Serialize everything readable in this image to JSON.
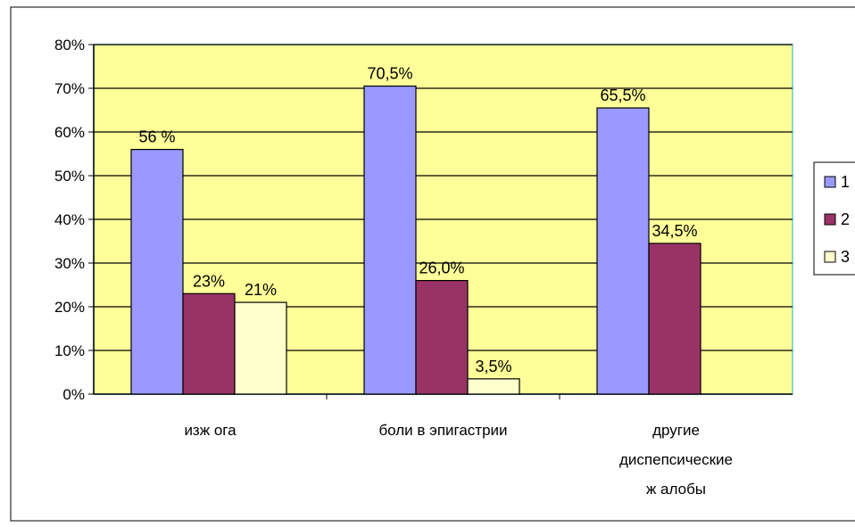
{
  "chart_data": {
    "type": "bar",
    "categories": [
      [
        "изж ога"
      ],
      [
        "боли в эпигастрии"
      ],
      [
        "другие",
        "диспепсические",
        "ж алобы"
      ]
    ],
    "series": [
      {
        "name": "1",
        "values": [
          56,
          70.5,
          65.5
        ],
        "labels": [
          "56 %",
          "70,5%",
          "65,5%"
        ],
        "color": "#9999ff"
      },
      {
        "name": "2",
        "values": [
          23,
          26.0,
          34.5
        ],
        "labels": [
          "23%",
          "26,0%",
          "34,5%"
        ],
        "color": "#993366"
      },
      {
        "name": "3",
        "values": [
          21,
          3.5,
          null
        ],
        "labels": [
          "21%",
          "3,5%",
          ""
        ],
        "color": "#ffffcc"
      }
    ],
    "y_ticks": [
      "0%",
      "10%",
      "20%",
      "30%",
      "40%",
      "50%",
      "60%",
      "70%",
      "80%"
    ],
    "ylim": [
      0,
      80
    ],
    "grid": true,
    "legend_position": "right",
    "plot_background": "#ffff99",
    "plot_border": "#66cccc"
  }
}
